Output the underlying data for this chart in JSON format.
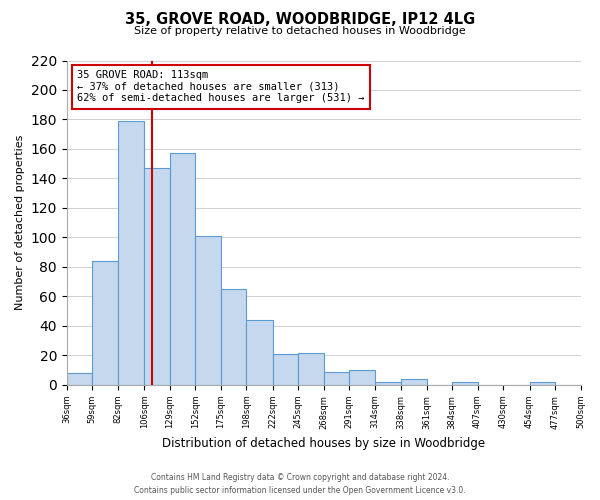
{
  "title": "35, GROVE ROAD, WOODBRIDGE, IP12 4LG",
  "subtitle": "Size of property relative to detached houses in Woodbridge",
  "xlabel": "Distribution of detached houses by size in Woodbridge",
  "ylabel": "Number of detached properties",
  "bar_edges": [
    36,
    59,
    82,
    106,
    129,
    152,
    175,
    198,
    222,
    245,
    268,
    291,
    314,
    338,
    361,
    384,
    407,
    430,
    454,
    477,
    500
  ],
  "bar_heights": [
    8,
    84,
    179,
    147,
    157,
    101,
    65,
    44,
    21,
    22,
    9,
    10,
    2,
    4,
    0,
    2,
    0,
    0,
    2,
    0
  ],
  "bar_color": "#c5d8ed",
  "bar_edge_color": "#5b9bd5",
  "property_value": 113,
  "vline_color": "#cc0000",
  "annotation_line1": "35 GROVE ROAD: 113sqm",
  "annotation_line2": "← 37% of detached houses are smaller (313)",
  "annotation_line3": "62% of semi-detached houses are larger (531) →",
  "annotation_box_edgecolor": "#cc0000",
  "annotation_box_facecolor": "white",
  "ylim": [
    0,
    220
  ],
  "yticks": [
    0,
    20,
    40,
    60,
    80,
    100,
    120,
    140,
    160,
    180,
    200,
    220
  ],
  "tick_labels": [
    "36sqm",
    "59sqm",
    "82sqm",
    "106sqm",
    "129sqm",
    "152sqm",
    "175sqm",
    "198sqm",
    "222sqm",
    "245sqm",
    "268sqm",
    "291sqm",
    "314sqm",
    "338sqm",
    "361sqm",
    "384sqm",
    "407sqm",
    "430sqm",
    "454sqm",
    "477sqm",
    "500sqm"
  ],
  "footer_text": "Contains HM Land Registry data © Crown copyright and database right 2024.\nContains public sector information licensed under the Open Government Licence v3.0.",
  "background_color": "#ffffff",
  "grid_color": "#d0d0d0"
}
